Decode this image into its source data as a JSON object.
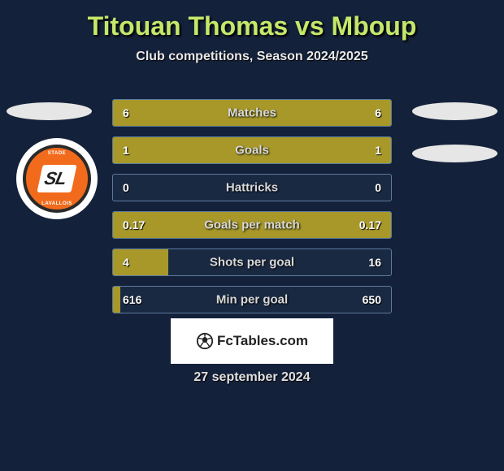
{
  "title": "Titouan Thomas vs Mboup",
  "subtitle": "Club competitions, Season 2024/2025",
  "date": "27 september 2024",
  "attribution": "FcTables.com",
  "badge": {
    "abbrev": "SL",
    "top": "STADE",
    "bottom": "LAVALLOIS"
  },
  "colors": {
    "background": "#14213a",
    "title": "#c4e86a",
    "bar_fill": "#a79829",
    "row_border": "#5b7a9e",
    "row_bg": "#1a2942",
    "text": "#ffffff",
    "label_text": "#d8d8d8"
  },
  "rows": [
    {
      "label": "Matches",
      "left_val": "6",
      "right_val": "6",
      "left_pct": 50,
      "right_pct": 50
    },
    {
      "label": "Goals",
      "left_val": "1",
      "right_val": "1",
      "left_pct": 50,
      "right_pct": 50
    },
    {
      "label": "Hattricks",
      "left_val": "0",
      "right_val": "0",
      "left_pct": 0,
      "right_pct": 0
    },
    {
      "label": "Goals per match",
      "left_val": "0.17",
      "right_val": "0.17",
      "left_pct": 50,
      "right_pct": 50
    },
    {
      "label": "Shots per goal",
      "left_val": "4",
      "right_val": "16",
      "left_pct": 20,
      "right_pct": 0
    },
    {
      "label": "Min per goal",
      "left_val": "616",
      "right_val": "650",
      "left_pct": 2.7,
      "right_pct": 0
    }
  ]
}
